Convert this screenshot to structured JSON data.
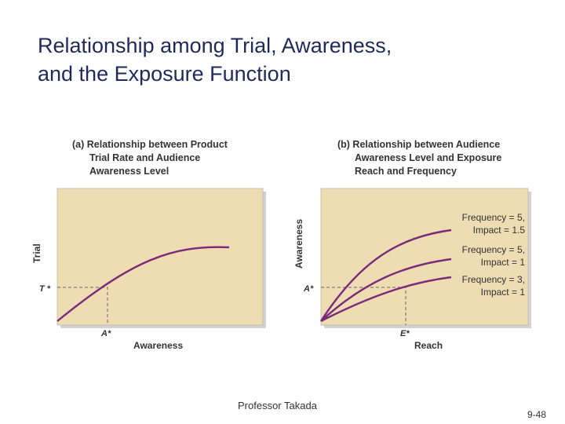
{
  "slide": {
    "title_line1": "Relationship among Trial, Awareness,",
    "title_line2": "and the Exposure Function",
    "footer_author": "Professor Takada",
    "page_number": "9-48"
  },
  "panel_a": {
    "caption_lines": [
      "(a) Relationship between Product",
      "Trial Rate and Audience",
      "Awareness Level"
    ],
    "y_axis_label": "Trial",
    "x_axis_label": "Awareness",
    "y_marker": "T *",
    "x_marker": "A*"
  },
  "panel_b": {
    "caption_lines": [
      "(b) Relationship between Audience",
      "Awareness Level and Exposure",
      "Reach and Frequency"
    ],
    "y_axis_label": "Awareness",
    "x_axis_label": "Reach",
    "y_marker": "A*",
    "x_marker": "E*",
    "curves": [
      {
        "label_line1": "Frequency = 5,",
        "label_line2": "Impact = 1.5"
      },
      {
        "label_line1": "Frequency = 5,",
        "label_line2": "Impact = 1"
      },
      {
        "label_line1": "Frequency = 3,",
        "label_line2": "Impact = 1"
      }
    ]
  },
  "colors": {
    "plot_background": "#eedcb3",
    "curve": "#7a2a7a",
    "title": "#1f2a5a",
    "panel_shadow": "#d2d2d2"
  }
}
